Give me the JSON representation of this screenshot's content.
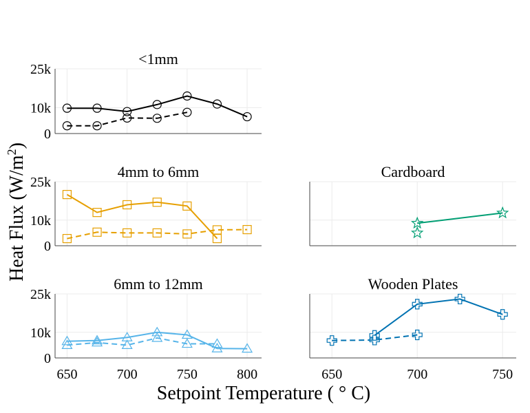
{
  "figure": {
    "ylabel": "Heat Flux (W/m",
    "ylabel_sup": "2",
    "ylabel_end": ")",
    "xlabel": "Setpoint Temperature ( ° C)"
  },
  "chart_data": [
    {
      "id": "p1",
      "type": "line",
      "title": "<1mm",
      "color": "#000000",
      "marker": "circle",
      "xlim": [
        640,
        812
      ],
      "ylim": [
        0,
        25000
      ],
      "yticks": [
        0,
        10000,
        25000
      ],
      "ytick_labels": [
        "0",
        "10k",
        "25k"
      ],
      "xticks": [
        650,
        700,
        750,
        800
      ],
      "show_xtick_labels": false,
      "series": [
        {
          "style": "solid",
          "points": [
            [
              650,
              9800
            ],
            [
              675,
              9800
            ],
            [
              700,
              8500
            ],
            [
              725,
              11200
            ],
            [
              750,
              14500
            ],
            [
              775,
              11400
            ],
            [
              800,
              6500
            ]
          ]
        },
        {
          "style": "dashed",
          "points": [
            [
              650,
              3000
            ],
            [
              675,
              3000
            ],
            [
              700,
              6000
            ],
            [
              725,
              5900
            ],
            [
              750,
              8200
            ]
          ]
        }
      ]
    },
    {
      "id": "p2",
      "type": "line",
      "title": "4mm to 6mm",
      "color": "#E69F00",
      "marker": "square",
      "xlim": [
        640,
        812
      ],
      "ylim": [
        0,
        25000
      ],
      "yticks": [
        0,
        10000,
        25000
      ],
      "ytick_labels": [
        "0",
        "10k",
        "25k"
      ],
      "xticks": [
        650,
        700,
        750,
        800
      ],
      "show_xtick_labels": false,
      "series": [
        {
          "style": "solid",
          "points": [
            [
              650,
              20000
            ],
            [
              675,
              13000
            ],
            [
              700,
              16000
            ],
            [
              725,
              17000
            ],
            [
              750,
              15500
            ],
            [
              775,
              2800
            ]
          ]
        },
        {
          "style": "dashed",
          "points": [
            [
              650,
              2800
            ],
            [
              675,
              5300
            ],
            [
              700,
              5000
            ],
            [
              725,
              5000
            ],
            [
              750,
              4600
            ],
            [
              775,
              6200
            ],
            [
              800,
              6300
            ]
          ]
        }
      ]
    },
    {
      "id": "p3",
      "type": "line",
      "title": "Cardboard",
      "color": "#009E73",
      "marker": "star",
      "xlim": [
        637,
        758
      ],
      "ylim": [
        0,
        25000
      ],
      "yticks": [
        0,
        10000,
        25000
      ],
      "ytick_labels": [],
      "xticks": [
        650,
        700,
        750
      ],
      "show_xtick_labels": false,
      "series": [
        {
          "style": "solid",
          "points": [
            [
              700,
              8800
            ],
            [
              750,
              12800
            ]
          ]
        },
        {
          "style": "none",
          "points": [
            [
              700,
              5000
            ]
          ]
        }
      ]
    },
    {
      "id": "p4",
      "type": "line",
      "title": "6mm to 12mm",
      "color": "#56B4E9",
      "marker": "triangle",
      "xlim": [
        640,
        812
      ],
      "ylim": [
        0,
        25000
      ],
      "yticks": [
        0,
        10000,
        25000
      ],
      "ytick_labels": [
        "0",
        "10k",
        "25k"
      ],
      "xticks": [
        650,
        700,
        750,
        800
      ],
      "show_xtick_labels": true,
      "xtick_labels": [
        "650",
        "700",
        "750",
        "800"
      ],
      "series": [
        {
          "style": "solid",
          "points": [
            [
              650,
              6500
            ],
            [
              675,
              6800
            ],
            [
              700,
              8000
            ],
            [
              725,
              10000
            ],
            [
              750,
              9000
            ],
            [
              775,
              3700
            ],
            [
              800,
              3600
            ]
          ]
        },
        {
          "style": "dashed",
          "points": [
            [
              650,
              5000
            ],
            [
              675,
              6000
            ],
            [
              700,
              5000
            ],
            [
              725,
              7800
            ],
            [
              750,
              5500
            ],
            [
              775,
              5500
            ]
          ]
        }
      ]
    },
    {
      "id": "p5",
      "type": "line",
      "title": "Wooden Plates",
      "color": "#0072B2",
      "marker": "cross",
      "xlim": [
        637,
        758
      ],
      "ylim": [
        0,
        25000
      ],
      "yticks": [
        0,
        10000,
        25000
      ],
      "ytick_labels": [],
      "xticks": [
        650,
        700,
        750
      ],
      "show_xtick_labels": true,
      "xtick_labels": [
        "650",
        "700",
        "750"
      ],
      "series": [
        {
          "style": "solid",
          "points": [
            [
              675,
              8800
            ],
            [
              700,
              21000
            ],
            [
              725,
              23000
            ],
            [
              750,
              17000
            ]
          ]
        },
        {
          "style": "dashed",
          "points": [
            [
              650,
              6800
            ],
            [
              675,
              7000
            ],
            [
              700,
              9000
            ]
          ]
        }
      ]
    }
  ]
}
